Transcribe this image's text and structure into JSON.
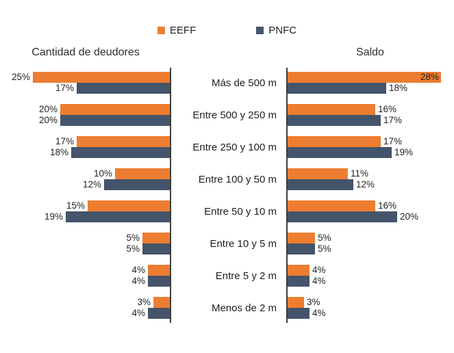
{
  "chart_data": {
    "type": "bar",
    "subtype": "butterfly-horizontal",
    "title": "",
    "value_suffix": "%",
    "grid": false,
    "legend_position": "top-center",
    "legend": [
      {
        "name": "EEFF",
        "color": "#ED7D31"
      },
      {
        "name": "PNFC",
        "color": "#44546A"
      }
    ],
    "axis_color": "#3d3d3d",
    "xlim": [
      0,
      30
    ],
    "categories": [
      "Más de 500 m",
      "Entre 500 y 250 m",
      "Entre 250 y 100 m",
      "Entre 100 y 50 m",
      "Entre 50 y 10 m",
      "Entre 10 y 5 m",
      "Entre 5 y 2 m",
      "Menos de 2 m"
    ],
    "panels": [
      {
        "title": "Cantidad de deudores",
        "side": "left",
        "series": [
          {
            "name": "EEFF",
            "values": [
              25,
              20,
              17,
              10,
              15,
              5,
              4,
              3
            ]
          },
          {
            "name": "PNFC",
            "values": [
              17,
              20,
              18,
              12,
              19,
              5,
              4,
              4
            ]
          }
        ]
      },
      {
        "title": "Saldo",
        "side": "right",
        "series": [
          {
            "name": "EEFF",
            "values": [
              28,
              16,
              17,
              11,
              16,
              5,
              4,
              3
            ]
          },
          {
            "name": "PNFC",
            "values": [
              18,
              17,
              19,
              12,
              20,
              5,
              4,
              4
            ]
          }
        ]
      }
    ]
  }
}
